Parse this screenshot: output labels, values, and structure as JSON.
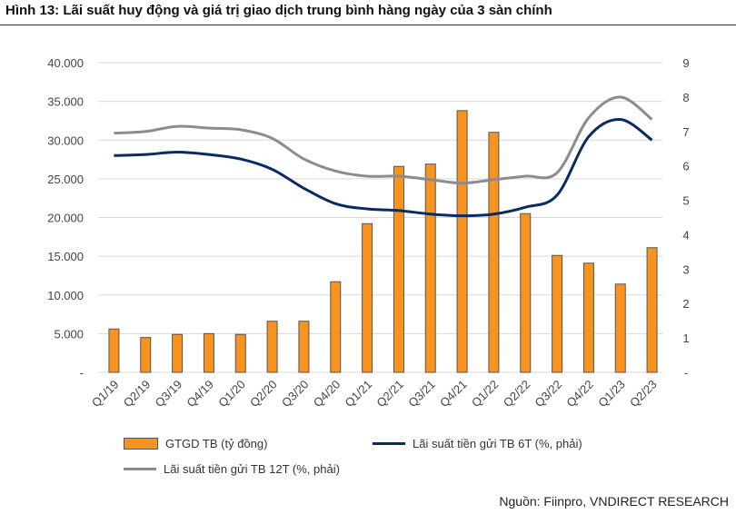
{
  "title": "Hình 13: Lãi suất huy động và giá trị giao dịch trung bình hàng ngày của 3 sàn chính",
  "source": "Nguồn: Fiinpro, VNDIRECT RESEARCH",
  "chart_data": {
    "type": "bar+line",
    "categories": [
      "Q1/19",
      "Q2/19",
      "Q3/19",
      "Q4/19",
      "Q1/20",
      "Q2/20",
      "Q3/20",
      "Q4/20",
      "Q1/21",
      "Q2/21",
      "Q3/21",
      "Q4/21",
      "Q1/22",
      "Q2/22",
      "Q3/22",
      "Q4/22",
      "Q1/23",
      "Q2/23"
    ],
    "left_axis": {
      "range": [
        0,
        40000
      ],
      "ticks": [
        "-",
        "5.000",
        "10.000",
        "15.000",
        "20.000",
        "25.000",
        "30.000",
        "35.000",
        "40.000"
      ]
    },
    "right_axis": {
      "range": [
        0,
        9
      ],
      "ticks": [
        "-",
        "1",
        "2",
        "3",
        "4",
        "5",
        "6",
        "7",
        "8",
        "9"
      ]
    },
    "grid": true,
    "legend_position": "bottom",
    "series": [
      {
        "name": "GTGD TB (tỷ đồng)",
        "type": "bar",
        "axis": "left",
        "color": "#F7931E",
        "values": [
          5600,
          4500,
          4900,
          5000,
          4900,
          6600,
          6600,
          11700,
          19200,
          26600,
          26900,
          33800,
          31000,
          20500,
          15100,
          14100,
          11400,
          16100
        ]
      },
      {
        "name": "Lãi suất tiền gửi TB 6T (%, phải)",
        "type": "line",
        "axis": "right",
        "color": "#0B2A63",
        "values": [
          6.3,
          6.33,
          6.4,
          6.33,
          6.2,
          5.9,
          5.35,
          4.9,
          4.75,
          4.7,
          4.6,
          4.55,
          4.6,
          4.8,
          5.15,
          6.85,
          7.35,
          6.75
        ]
      },
      {
        "name": "Lãi suất tiền gửi TB 12T (%, phải)",
        "type": "line",
        "axis": "right",
        "color": "#8C8C8C",
        "values": [
          6.95,
          7.0,
          7.15,
          7.1,
          7.05,
          6.8,
          6.2,
          5.85,
          5.7,
          5.7,
          5.6,
          5.5,
          5.6,
          5.7,
          5.8,
          7.4,
          8.0,
          7.35
        ]
      }
    ]
  }
}
